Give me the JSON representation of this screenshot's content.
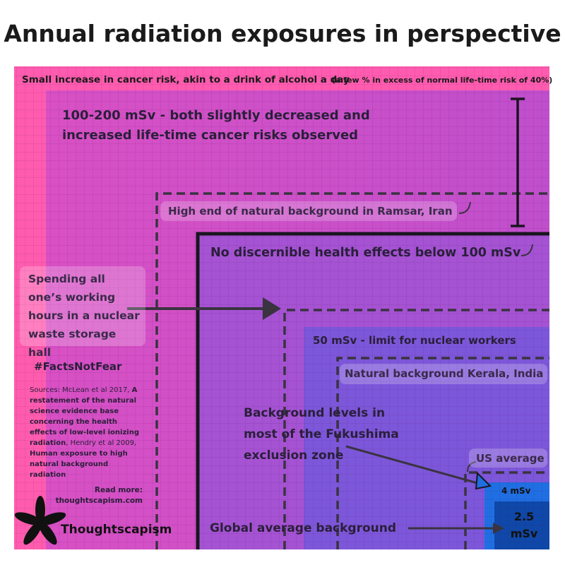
{
  "header": {
    "title": "Annual radiation exposures in perspective"
  },
  "levels": {
    "cancer_risk": "Small increase in cancer risk, akin to a drink of alcohol a day",
    "cancer_risk_note": "(a few % in excess of normal life-time risk of 40%)",
    "range_100_200": "100-200 mSv - both slightly decreased and increased life-time cancer risks observed",
    "ramsar": "High end of natural background in Ramsar, Iran",
    "no_effects": "No discernible health effects below 100 mSv",
    "waste_hall": "Spending all one’s working hours in a nuclear waste storage hall",
    "worker_limit": "50 mSv - limit for nuclear workers",
    "kerala": "Natural background Kerala, India",
    "fukushima": "Background levels in most of the Fukushima exclusion zone",
    "us_average": "US average",
    "us_value": "4 mSv",
    "global_value": "2.5 mSv",
    "global_average": "Global average background"
  },
  "footer": {
    "hashtag": "#FactsNotFear",
    "sources": [
      "Sources: McLean et al 2017, ",
      "A restatement of the natural science evidence base concerning the health effects of low-level ionizing radiation",
      ", Hendry et al 2009, ",
      "Human exposure to high natural background radiation"
    ],
    "read_more": "Read more:",
    "url": "thoughtscapism.com",
    "brand": "Thoughtscapism"
  }
}
